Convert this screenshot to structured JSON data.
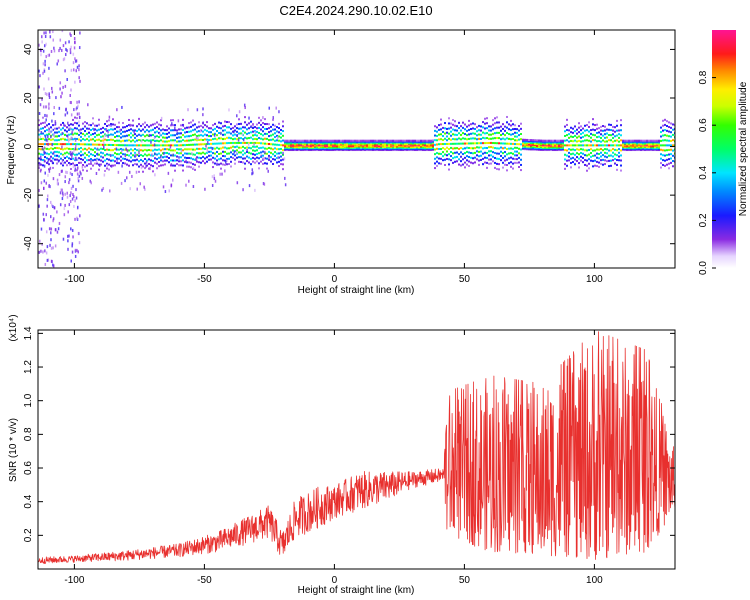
{
  "title": "C2E4.2024.290.10.02.E10",
  "chart_data": [
    {
      "type": "heatmap",
      "xlabel": "Height of straight line (km)",
      "ylabel": "Frequency (Hz)",
      "xlim": [
        -114,
        131
      ],
      "ylim": [
        -50,
        48
      ],
      "xticks": [
        -100,
        -50,
        0,
        50,
        100
      ],
      "yticks": [
        -40,
        -20,
        0,
        20,
        40
      ],
      "colorbar": {
        "label": "Normalized spectral amplitude",
        "range": [
          0,
          1
        ],
        "ticks": [
          "0.0",
          "0.2",
          "0.4",
          "0.6",
          "0.8"
        ]
      },
      "band_center_hz": [
        [
          -114,
          1
        ],
        [
          -100,
          1
        ],
        [
          -80,
          0.5
        ],
        [
          -60,
          0.5
        ],
        [
          -40,
          1.5
        ],
        [
          -30,
          1.5
        ],
        [
          -20,
          0.5
        ],
        [
          0,
          0.5
        ],
        [
          20,
          0.5
        ],
        [
          37,
          0.5
        ],
        [
          40,
          1
        ],
        [
          60,
          1.5
        ],
        [
          70,
          1
        ],
        [
          80,
          0.5
        ],
        [
          100,
          0.5
        ],
        [
          131,
          0.5
        ]
      ]
    },
    {
      "type": "line",
      "xlabel": "Height of straight line (km)",
      "ylabel": "SNR (10 * v/v)",
      "scale_label": "(x10⁴)",
      "xlim": [
        -114,
        131
      ],
      "ylim": [
        0,
        1.42
      ],
      "xticks": [
        -100,
        -50,
        0,
        50,
        100
      ],
      "yticks": [
        0.2,
        0.4,
        0.6,
        0.8,
        1.0,
        1.2,
        1.4
      ],
      "ytick_labels": [
        "0.2",
        "0.4",
        "0.6",
        "0.8",
        "1.0",
        "1.2",
        "1.4"
      ],
      "series": [
        {
          "color": "#e8302e",
          "envelope": [
            [
              -114,
              0.03,
              0.07
            ],
            [
              -100,
              0.04,
              0.08
            ],
            [
              -80,
              0.05,
              0.11
            ],
            [
              -60,
              0.07,
              0.15
            ],
            [
              -45,
              0.1,
              0.22
            ],
            [
              -35,
              0.14,
              0.3
            ],
            [
              -25,
              0.18,
              0.38
            ],
            [
              -20,
              0.05,
              0.22
            ],
            [
              -15,
              0.18,
              0.42
            ],
            [
              -5,
              0.25,
              0.5
            ],
            [
              0,
              0.3,
              0.5
            ],
            [
              10,
              0.35,
              0.58
            ],
            [
              20,
              0.4,
              0.58
            ],
            [
              30,
              0.48,
              0.58
            ],
            [
              42,
              0.52,
              0.6
            ],
            [
              43,
              0.2,
              1.05
            ],
            [
              60,
              0.1,
              1.15
            ],
            [
              80,
              0.08,
              1.1
            ],
            [
              100,
              0.05,
              1.42
            ],
            [
              120,
              0.1,
              1.3
            ],
            [
              131,
              0.35,
              0.7
            ]
          ]
        }
      ]
    }
  ]
}
